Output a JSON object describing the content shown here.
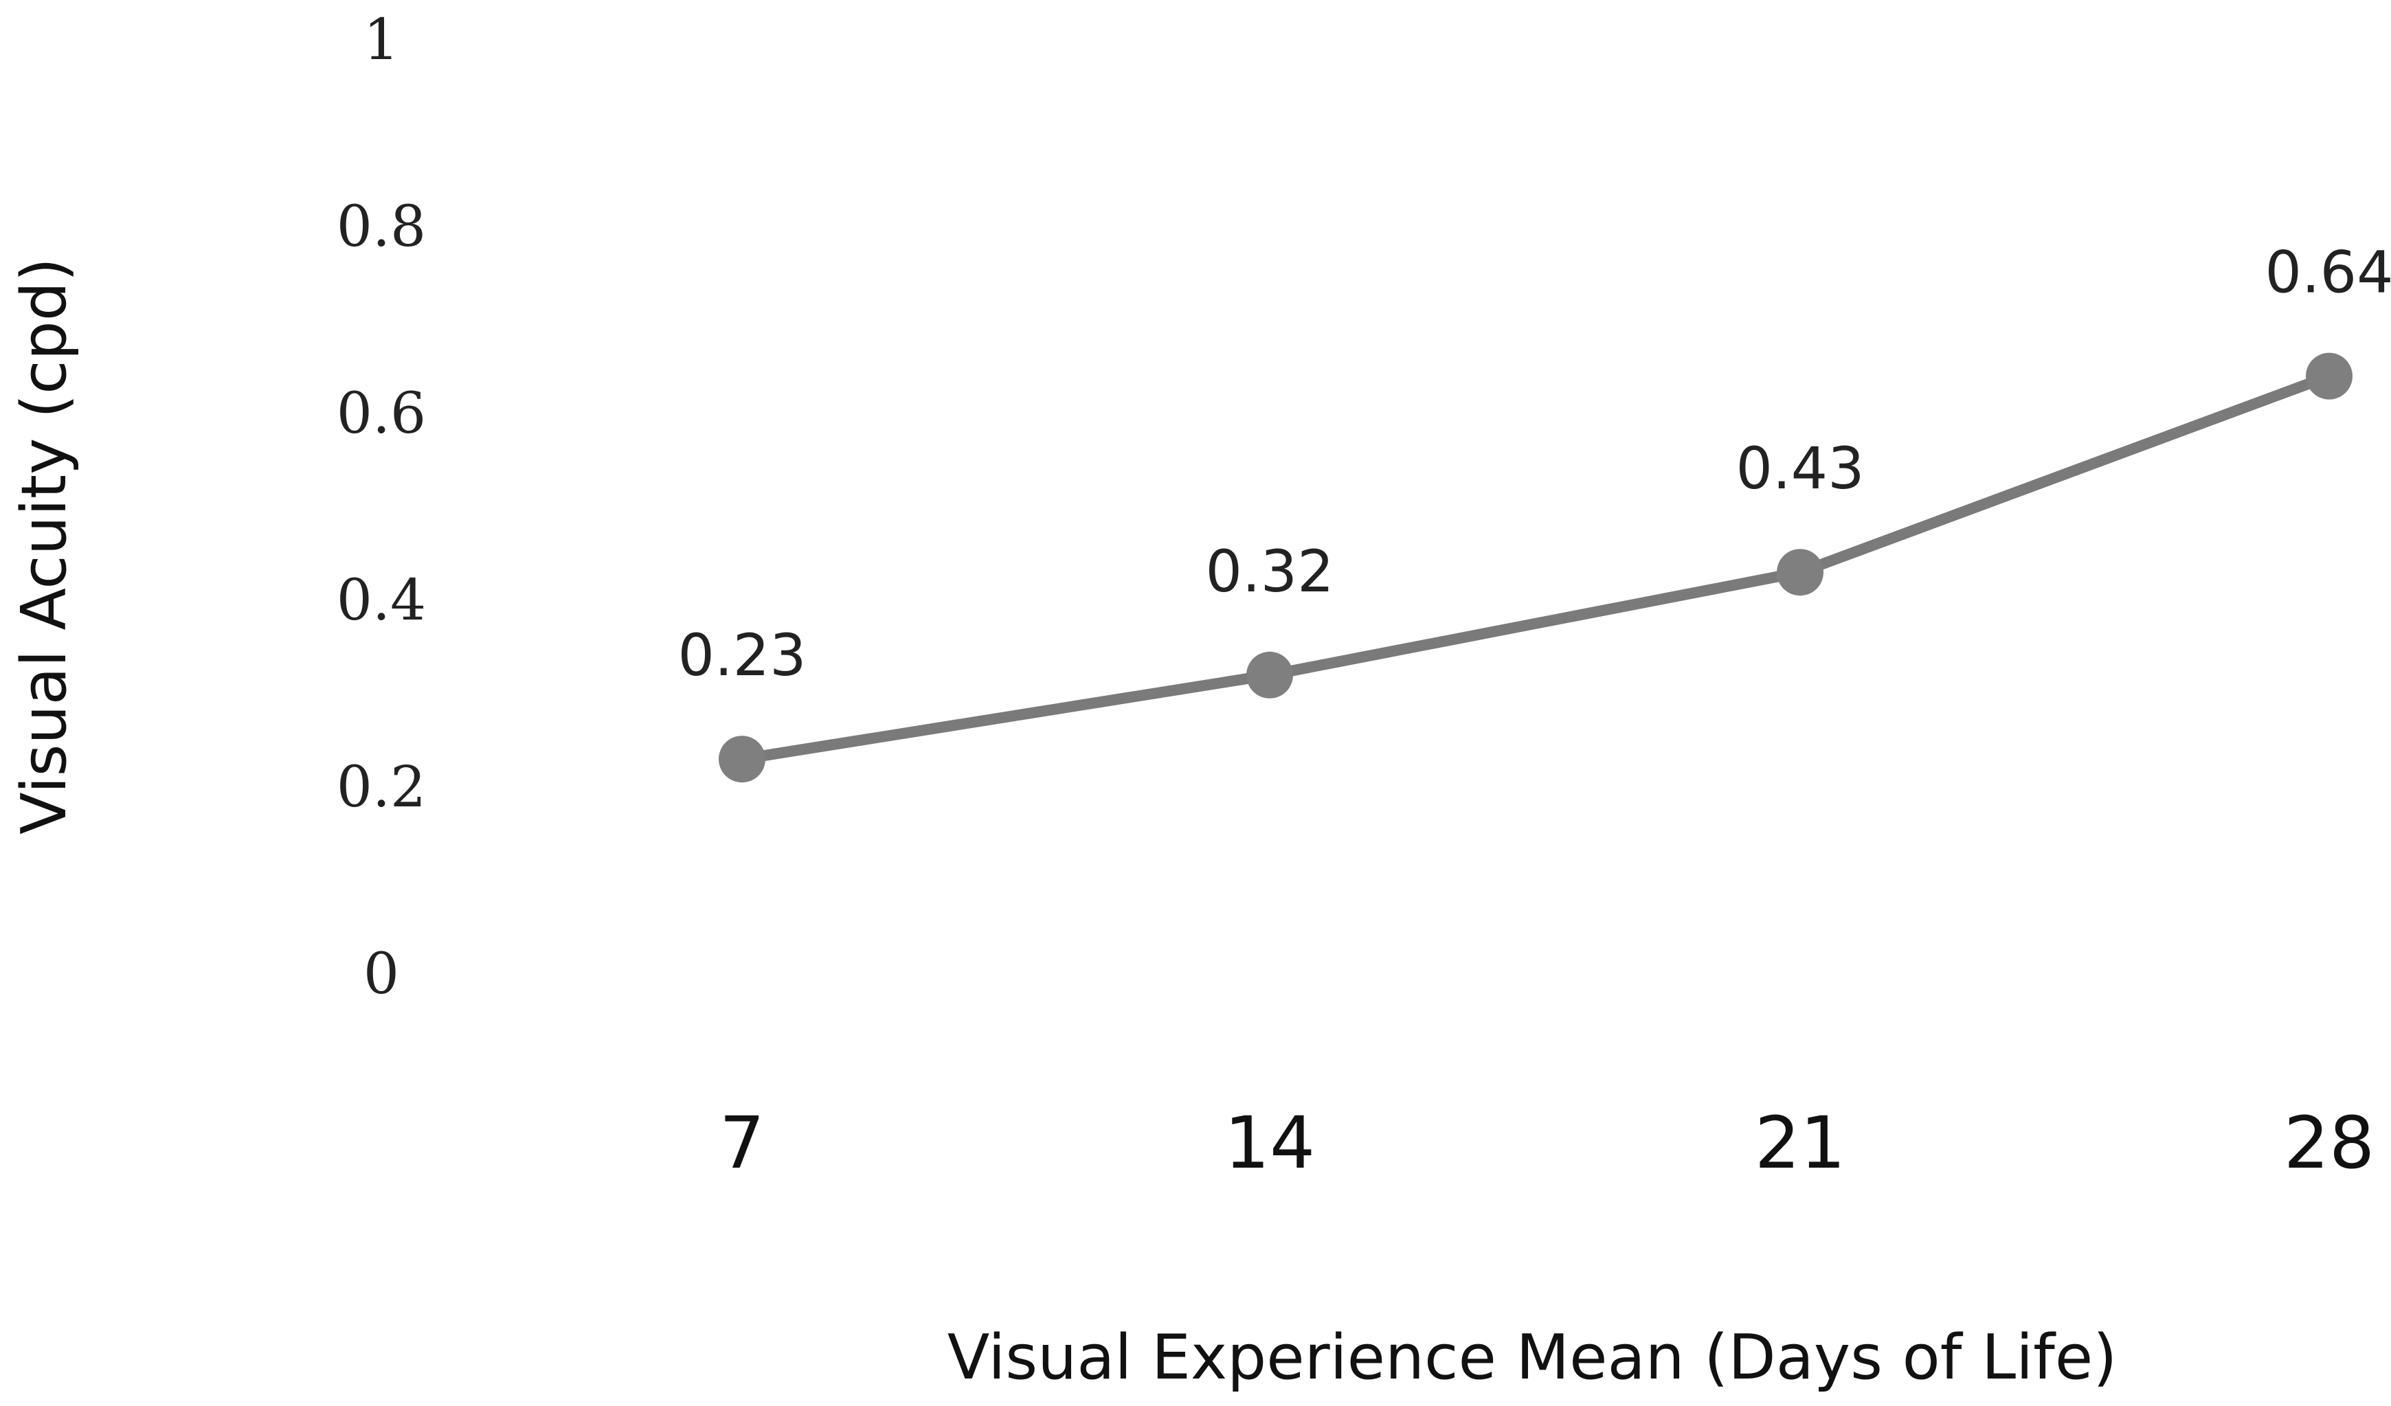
{
  "chart_data": {
    "type": "line",
    "title": "",
    "xlabel": "Visual Experience Mean (Days of Life)",
    "ylabel": "Visual Acuity (cpd)",
    "categories": [
      "7",
      "14",
      "21",
      "28"
    ],
    "series": [
      {
        "values": [
          0.23,
          0.32,
          0.43,
          0.64
        ],
        "data_labels": [
          "0.23",
          "0.32",
          "0.43",
          "0.64"
        ]
      }
    ],
    "ylim": [
      0,
      1
    ],
    "yticks": [
      "0",
      "0.2",
      "0.4",
      "0.6",
      "0.8",
      "1"
    ],
    "grid": false,
    "legend": "none",
    "colors": {
      "line": "#7a7a7a",
      "marker": "#7f7f7f",
      "text": "#111111"
    }
  }
}
